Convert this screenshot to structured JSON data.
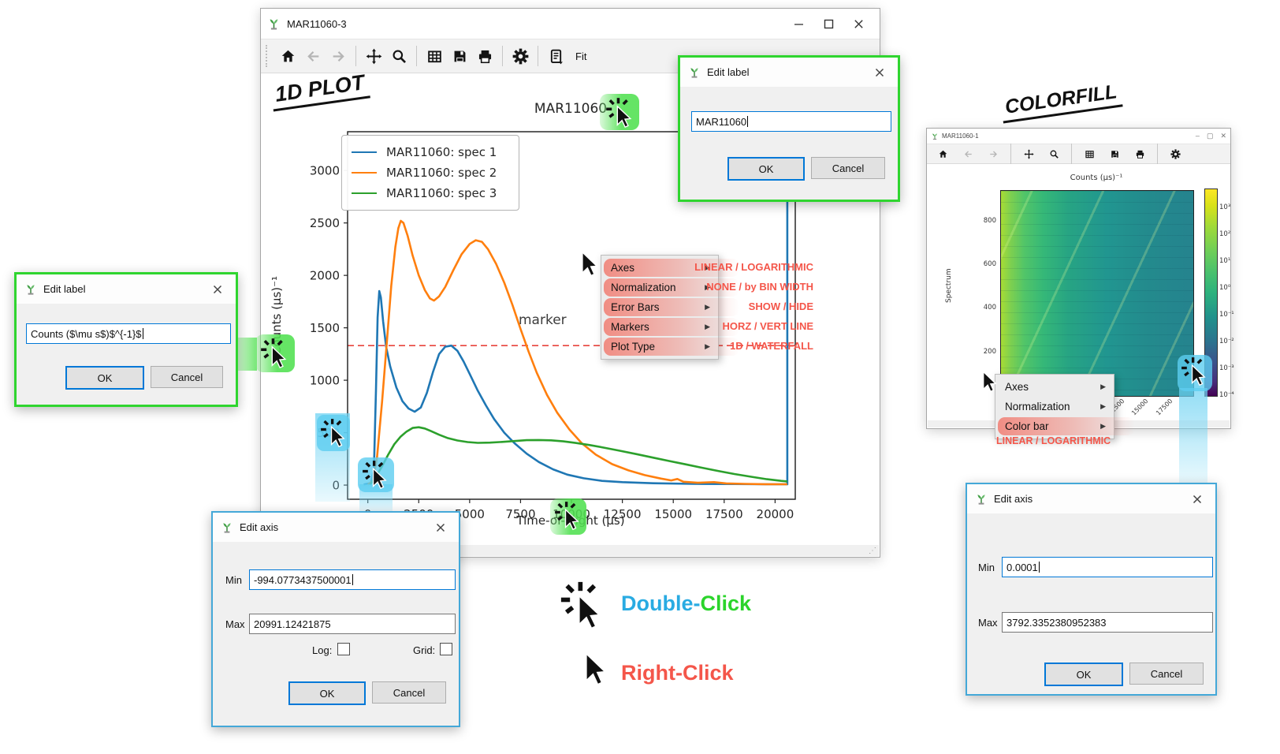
{
  "annotations": {
    "plot_heading": "1D PLOT",
    "colorfill_heading": "COLORFILL",
    "marker_label": "marker",
    "click_legend": {
      "double_prefix": "Double-",
      "double_suffix": "Click",
      "right": "Right-Click"
    }
  },
  "colors": {
    "accent_blue": "#0078d7",
    "dialog_border_green": "#2fd52f",
    "dialog_border_blue": "#44a8d8",
    "menu_hint_red": "#f4564a",
    "double_click_blue": "#29abe2",
    "double_click_green": "#2bd42b",
    "marker_red": "#e8433c",
    "series_colors": [
      "#1f77b4",
      "#ff7f0e",
      "#2ca02c"
    ]
  },
  "main_window": {
    "title": "MAR11060-3",
    "window_buttons": [
      "minimize",
      "maximize",
      "close"
    ],
    "toolbar": {
      "icon_groups": [
        [
          "home",
          "back",
          "forward"
        ],
        [
          "pan",
          "zoom-to-rectangle"
        ],
        [
          "grid",
          "save",
          "print"
        ],
        [
          "customize"
        ],
        [
          "generate-script"
        ]
      ],
      "disabled_icons": [
        "back",
        "forward"
      ],
      "fit_label": "Fit"
    }
  },
  "colorfill_window": {
    "title": "MAR11060-1",
    "window_buttons": [
      "minimize",
      "maximize",
      "close"
    ],
    "toolbar": {
      "icon_groups": [
        [
          "home",
          "back",
          "forward"
        ],
        [
          "pan",
          "zoom-to-rectangle"
        ],
        [
          "grid",
          "save",
          "print"
        ],
        [
          "customize"
        ]
      ],
      "disabled_icons": [
        "back",
        "forward"
      ]
    }
  },
  "chart_data": [
    {
      "type": "line",
      "title": "MAR11060",
      "xlabel": "Time-of-Flight (μs)",
      "ylabel": "Counts (μs)⁻¹",
      "xlim": [
        -994.0773437500001,
        20991.12421875
      ],
      "ylim": [
        -135,
        3370
      ],
      "xticks": [
        0,
        2500,
        5000,
        7500,
        10000,
        12500,
        15000,
        17500,
        20000
      ],
      "yticks": [
        0,
        500,
        1000,
        1500,
        2000,
        2500,
        3000
      ],
      "grid": false,
      "legend_position": "upper left",
      "marker": {
        "y": 1330,
        "label": "marker",
        "style": "dashed",
        "color": "#e8433c"
      },
      "series": [
        {
          "name": "MAR11060: spec 1",
          "color": "#1f77b4",
          "points": [
            [
              -200,
              5
            ],
            [
              150,
              20
            ],
            [
              300,
              150
            ],
            [
              400,
              900
            ],
            [
              480,
              1600
            ],
            [
              560,
              1850
            ],
            [
              640,
              1790
            ],
            [
              750,
              1560
            ],
            [
              900,
              1320
            ],
            [
              1100,
              1130
            ],
            [
              1400,
              930
            ],
            [
              1700,
              800
            ],
            [
              2000,
              730
            ],
            [
              2300,
              700
            ],
            [
              2600,
              740
            ],
            [
              2900,
              880
            ],
            [
              3200,
              1080
            ],
            [
              3500,
              1250
            ],
            [
              3800,
              1320
            ],
            [
              4100,
              1330
            ],
            [
              4400,
              1280
            ],
            [
              4700,
              1180
            ],
            [
              5000,
              1060
            ],
            [
              5400,
              900
            ],
            [
              5800,
              760
            ],
            [
              6200,
              630
            ],
            [
              6700,
              500
            ],
            [
              7200,
              400
            ],
            [
              7800,
              300
            ],
            [
              8400,
              220
            ],
            [
              9100,
              150
            ],
            [
              9800,
              100
            ],
            [
              10600,
              65
            ],
            [
              11500,
              40
            ],
            [
              12500,
              28
            ],
            [
              14000,
              18
            ],
            [
              16000,
              12
            ],
            [
              18000,
              10
            ],
            [
              19500,
              8
            ],
            [
              20600,
              8
            ],
            [
              20600,
              3300
            ]
          ]
        },
        {
          "name": "MAR11060: spec 2",
          "color": "#ff7f0e",
          "points": [
            [
              0,
              5
            ],
            [
              250,
              40
            ],
            [
              450,
              260
            ],
            [
              700,
              800
            ],
            [
              950,
              1400
            ],
            [
              1150,
              1900
            ],
            [
              1350,
              2270
            ],
            [
              1500,
              2450
            ],
            [
              1620,
              2520
            ],
            [
              1750,
              2500
            ],
            [
              1950,
              2380
            ],
            [
              2200,
              2190
            ],
            [
              2500,
              2000
            ],
            [
              2800,
              1860
            ],
            [
              3050,
              1780
            ],
            [
              3250,
              1760
            ],
            [
              3500,
              1800
            ],
            [
              3800,
              1890
            ],
            [
              4200,
              2050
            ],
            [
              4600,
              2200
            ],
            [
              5000,
              2300
            ],
            [
              5300,
              2335
            ],
            [
              5600,
              2320
            ],
            [
              5900,
              2250
            ],
            [
              6300,
              2110
            ],
            [
              6700,
              1930
            ],
            [
              7100,
              1720
            ],
            [
              7500,
              1490
            ],
            [
              7900,
              1270
            ],
            [
              8300,
              1070
            ],
            [
              8800,
              860
            ],
            [
              9300,
              690
            ],
            [
              9900,
              530
            ],
            [
              10500,
              400
            ],
            [
              11200,
              290
            ],
            [
              12000,
              200
            ],
            [
              12800,
              140
            ],
            [
              13600,
              95
            ],
            [
              14400,
              62
            ],
            [
              14900,
              45
            ],
            [
              15200,
              58
            ],
            [
              15500,
              32
            ],
            [
              16200,
              22
            ],
            [
              17000,
              28
            ],
            [
              17600,
              16
            ],
            [
              18500,
              12
            ],
            [
              19500,
              9
            ],
            [
              20600,
              8
            ]
          ]
        },
        {
          "name": "MAR11060: spec 3",
          "color": "#2ca02c",
          "points": [
            [
              100,
              2
            ],
            [
              400,
              80
            ],
            [
              700,
              180
            ],
            [
              1000,
              290
            ],
            [
              1300,
              390
            ],
            [
              1600,
              460
            ],
            [
              1900,
              510
            ],
            [
              2200,
              545
            ],
            [
              2500,
              552
            ],
            [
              2800,
              540
            ],
            [
              3100,
              515
            ],
            [
              3500,
              480
            ],
            [
              3900,
              450
            ],
            [
              4400,
              425
            ],
            [
              4900,
              410
            ],
            [
              5400,
              403
            ],
            [
              6000,
              405
            ],
            [
              6600,
              412
            ],
            [
              7200,
              420
            ],
            [
              7800,
              428
            ],
            [
              8400,
              430
            ],
            [
              9000,
              427
            ],
            [
              9600,
              417
            ],
            [
              10200,
              402
            ],
            [
              10900,
              382
            ],
            [
              11600,
              357
            ],
            [
              12400,
              327
            ],
            [
              13200,
              295
            ],
            [
              14000,
              262
            ],
            [
              14800,
              230
            ],
            [
              15600,
              198
            ],
            [
              16400,
              166
            ],
            [
              17200,
              135
            ],
            [
              18000,
              106
            ],
            [
              18800,
              80
            ],
            [
              19600,
              56
            ],
            [
              20300,
              40
            ],
            [
              20600,
              35
            ]
          ]
        }
      ]
    },
    {
      "type": "heatmap",
      "title": "Counts (μs)⁻¹",
      "ylabel": "Spectrum",
      "yticks": [
        200,
        400,
        600,
        800
      ],
      "xticks": [
        2500,
        5000,
        7500,
        10000,
        12500,
        15000,
        17500
      ],
      "colormap": "viridis",
      "colorbar": {
        "scale": "logarithmic",
        "ticks": [
          "10³",
          "10²",
          "10¹",
          "10⁰",
          "10⁻¹",
          "10⁻²",
          "10⁻³",
          "10⁻⁴"
        ]
      }
    }
  ],
  "context_menu": {
    "items": [
      {
        "label": "Axes",
        "hint": "LINEAR / LOGARITHMIC"
      },
      {
        "label": "Normalization",
        "hint": "NONE / by BIN WIDTH"
      },
      {
        "label": "Error Bars",
        "hint": "SHOW / HIDE"
      },
      {
        "label": "Markers",
        "hint": "HORZ / VERT LINE"
      },
      {
        "label": "Plot Type",
        "hint": "1D / WATERFALL"
      }
    ]
  },
  "colorfill_menu": {
    "items": [
      {
        "label": "Axes",
        "highlighted": false
      },
      {
        "label": "Normalization",
        "highlighted": false
      },
      {
        "label": "Color bar",
        "highlighted": true
      }
    ],
    "hint": "LINEAR / LOGARITHMIC"
  },
  "dialogs": {
    "edit_label_top": {
      "title": "Edit label",
      "value": "MAR11060",
      "ok_label": "OK",
      "cancel_label": "Cancel"
    },
    "edit_label_left": {
      "title": "Edit label",
      "value": "Counts ($\\mu s$)$^{-1}$",
      "ok_label": "OK",
      "cancel_label": "Cancel"
    },
    "edit_axis_left": {
      "title": "Edit axis",
      "min_label": "Min",
      "min_value": "-994.0773437500001",
      "max_label": "Max",
      "max_value": "20991.12421875",
      "log_label": "Log:",
      "grid_label": "Grid:",
      "ok_label": "OK",
      "cancel_label": "Cancel"
    },
    "edit_axis_right": {
      "title": "Edit axis",
      "min_label": "Min",
      "min_value": "0.0001",
      "max_label": "Max",
      "max_value": "3792.3352380952383",
      "ok_label": "OK",
      "cancel_label": "Cancel"
    }
  }
}
